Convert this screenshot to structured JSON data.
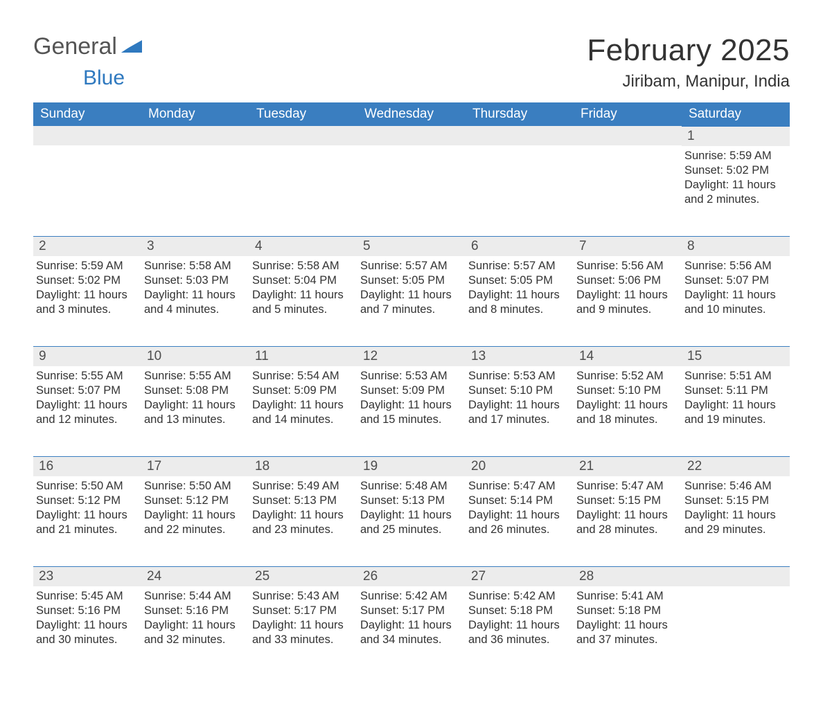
{
  "brand": {
    "part1": "General",
    "part2": "Blue",
    "logo_fill": "#2f79bf"
  },
  "title": "February 2025",
  "location": "Jiribam, Manipur, India",
  "colors": {
    "header_bg": "#3a7ec0",
    "header_text": "#ffffff",
    "daynum_bg": "#ececec",
    "daynum_border": "#3a7ec0",
    "body_text": "#333333",
    "page_bg": "#ffffff"
  },
  "layout": {
    "columns": 7,
    "first_day_column": 6,
    "font_family": "Arial, Helvetica, sans-serif",
    "title_fontsize": 44,
    "location_fontsize": 24,
    "weekday_fontsize": 19,
    "daynum_fontsize": 19,
    "detail_fontsize": 16.5
  },
  "weekdays": [
    "Sunday",
    "Monday",
    "Tuesday",
    "Wednesday",
    "Thursday",
    "Friday",
    "Saturday"
  ],
  "days": [
    {
      "n": 1,
      "sunrise": "5:59 AM",
      "sunset": "5:02 PM",
      "daylight": "11 hours and 2 minutes."
    },
    {
      "n": 2,
      "sunrise": "5:59 AM",
      "sunset": "5:02 PM",
      "daylight": "11 hours and 3 minutes."
    },
    {
      "n": 3,
      "sunrise": "5:58 AM",
      "sunset": "5:03 PM",
      "daylight": "11 hours and 4 minutes."
    },
    {
      "n": 4,
      "sunrise": "5:58 AM",
      "sunset": "5:04 PM",
      "daylight": "11 hours and 5 minutes."
    },
    {
      "n": 5,
      "sunrise": "5:57 AM",
      "sunset": "5:05 PM",
      "daylight": "11 hours and 7 minutes."
    },
    {
      "n": 6,
      "sunrise": "5:57 AM",
      "sunset": "5:05 PM",
      "daylight": "11 hours and 8 minutes."
    },
    {
      "n": 7,
      "sunrise": "5:56 AM",
      "sunset": "5:06 PM",
      "daylight": "11 hours and 9 minutes."
    },
    {
      "n": 8,
      "sunrise": "5:56 AM",
      "sunset": "5:07 PM",
      "daylight": "11 hours and 10 minutes."
    },
    {
      "n": 9,
      "sunrise": "5:55 AM",
      "sunset": "5:07 PM",
      "daylight": "11 hours and 12 minutes."
    },
    {
      "n": 10,
      "sunrise": "5:55 AM",
      "sunset": "5:08 PM",
      "daylight": "11 hours and 13 minutes."
    },
    {
      "n": 11,
      "sunrise": "5:54 AM",
      "sunset": "5:09 PM",
      "daylight": "11 hours and 14 minutes."
    },
    {
      "n": 12,
      "sunrise": "5:53 AM",
      "sunset": "5:09 PM",
      "daylight": "11 hours and 15 minutes."
    },
    {
      "n": 13,
      "sunrise": "5:53 AM",
      "sunset": "5:10 PM",
      "daylight": "11 hours and 17 minutes."
    },
    {
      "n": 14,
      "sunrise": "5:52 AM",
      "sunset": "5:10 PM",
      "daylight": "11 hours and 18 minutes."
    },
    {
      "n": 15,
      "sunrise": "5:51 AM",
      "sunset": "5:11 PM",
      "daylight": "11 hours and 19 minutes."
    },
    {
      "n": 16,
      "sunrise": "5:50 AM",
      "sunset": "5:12 PM",
      "daylight": "11 hours and 21 minutes."
    },
    {
      "n": 17,
      "sunrise": "5:50 AM",
      "sunset": "5:12 PM",
      "daylight": "11 hours and 22 minutes."
    },
    {
      "n": 18,
      "sunrise": "5:49 AM",
      "sunset": "5:13 PM",
      "daylight": "11 hours and 23 minutes."
    },
    {
      "n": 19,
      "sunrise": "5:48 AM",
      "sunset": "5:13 PM",
      "daylight": "11 hours and 25 minutes."
    },
    {
      "n": 20,
      "sunrise": "5:47 AM",
      "sunset": "5:14 PM",
      "daylight": "11 hours and 26 minutes."
    },
    {
      "n": 21,
      "sunrise": "5:47 AM",
      "sunset": "5:15 PM",
      "daylight": "11 hours and 28 minutes."
    },
    {
      "n": 22,
      "sunrise": "5:46 AM",
      "sunset": "5:15 PM",
      "daylight": "11 hours and 29 minutes."
    },
    {
      "n": 23,
      "sunrise": "5:45 AM",
      "sunset": "5:16 PM",
      "daylight": "11 hours and 30 minutes."
    },
    {
      "n": 24,
      "sunrise": "5:44 AM",
      "sunset": "5:16 PM",
      "daylight": "11 hours and 32 minutes."
    },
    {
      "n": 25,
      "sunrise": "5:43 AM",
      "sunset": "5:17 PM",
      "daylight": "11 hours and 33 minutes."
    },
    {
      "n": 26,
      "sunrise": "5:42 AM",
      "sunset": "5:17 PM",
      "daylight": "11 hours and 34 minutes."
    },
    {
      "n": 27,
      "sunrise": "5:42 AM",
      "sunset": "5:18 PM",
      "daylight": "11 hours and 36 minutes."
    },
    {
      "n": 28,
      "sunrise": "5:41 AM",
      "sunset": "5:18 PM",
      "daylight": "11 hours and 37 minutes."
    }
  ],
  "labels": {
    "sunrise": "Sunrise:",
    "sunset": "Sunset:",
    "daylight": "Daylight:"
  }
}
